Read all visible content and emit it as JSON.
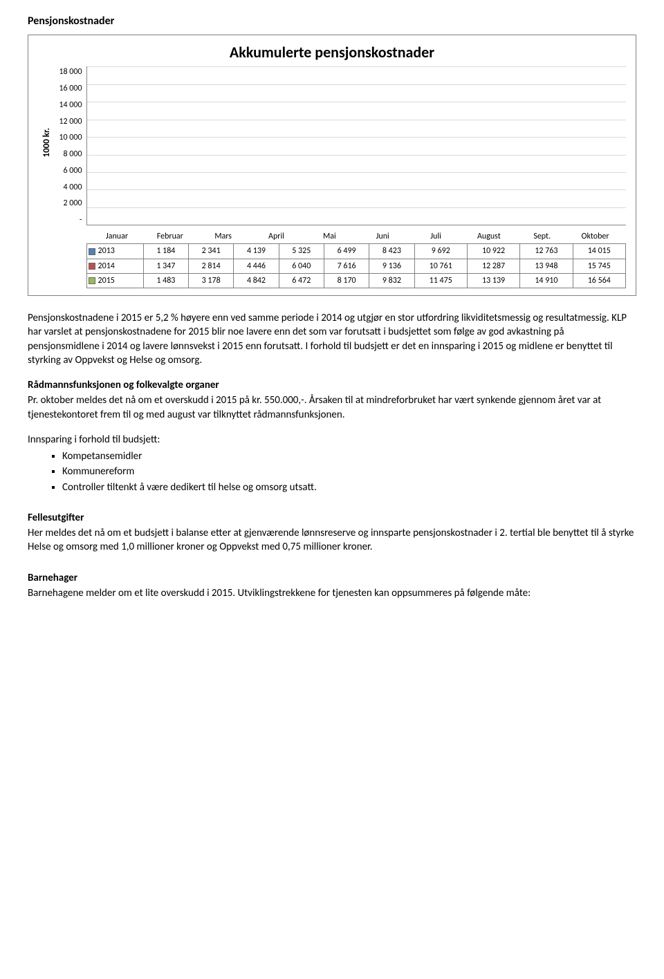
{
  "heading": "Pensjonskostnader",
  "chart": {
    "type": "bar",
    "title": "Akkumulerte pensjonskostnader",
    "y_axis_label": "1000 kr.",
    "ymax": 18000,
    "yticks": [
      "18 000",
      "16 000",
      "14 000",
      "12 000",
      "10 000",
      "8 000",
      "6 000",
      "4 000",
      "2 000",
      "-"
    ],
    "grid_color": "#d9d9d9",
    "categories": [
      "Januar",
      "Februar",
      "Mars",
      "April",
      "Mai",
      "Juni",
      "Juli",
      "August",
      "Sept.",
      "Oktober"
    ],
    "series": [
      {
        "name": "2013",
        "color": "#4f81bd",
        "values": [
          1184,
          2341,
          4139,
          5325,
          6499,
          8423,
          9692,
          10922,
          12763,
          14015
        ],
        "display": [
          "1 184",
          "2 341",
          "4 139",
          "5 325",
          "6 499",
          "8 423",
          "9 692",
          "10 922",
          "12 763",
          "14 015"
        ]
      },
      {
        "name": "2014",
        "color": "#c0504d",
        "values": [
          1347,
          2814,
          4446,
          6040,
          7616,
          9136,
          10761,
          12287,
          13948,
          15745
        ],
        "display": [
          "1 347",
          "2 814",
          "4 446",
          "6 040",
          "7 616",
          "9 136",
          "10 761",
          "12 287",
          "13 948",
          "15 745"
        ]
      },
      {
        "name": "2015",
        "color": "#9bbb59",
        "values": [
          1483,
          3178,
          4842,
          6472,
          8170,
          9832,
          11475,
          13139,
          14910,
          16564
        ],
        "display": [
          "1 483",
          "3 178",
          "4 842",
          "6 472",
          "8 170",
          "9 832",
          "11 475",
          "13 139",
          "14 910",
          "16 564"
        ]
      }
    ]
  },
  "paragraphs": {
    "p1": "Pensjonskostnadene i 2015 er 5,2 % høyere enn ved samme periode i 2014 og utgjør en stor utfordring likviditetsmessig og resultatmessig. KLP har varslet at pensjonskostnadene for 2015 blir noe lavere enn det som var forutsatt i budsjettet som følge av god avkastning på pensjonsmidlene i 2014 og lavere lønnsvekst i 2015 enn forutsatt. I forhold til budsjett er det en innsparing i 2015 og midlene er benyttet til styrking av Oppvekst og Helse og omsorg.",
    "radmann_head": "Rådmannsfunksjonen og folkevalgte organer",
    "radmann_body": "Pr. oktober meldes det nå om et overskudd i 2015 på kr. 550.000,-. Årsaken til at mindreforbruket har vært synkende gjennom året var at tjenestekontoret frem til og med august var tilknyttet rådmannsfunksjonen.",
    "innsparing_head": "Innsparing i forhold til budsjett:",
    "bullets": [
      "Kompetansemidler",
      "Kommunereform",
      "Controller tiltenkt å være dedikert til helse og omsorg utsatt."
    ],
    "felles_head": "Fellesutgifter",
    "felles_body": "Her meldes det nå om et budsjett i balanse etter at gjenværende lønnsreserve og innsparte pensjonskostnader i 2. tertial ble benyttet til å styrke Helse og omsorg med 1,0 millioner kroner og Oppvekst med 0,75 millioner kroner.",
    "barnehager_head": "Barnehager",
    "barnehager_body": "Barnehagene melder om et lite overskudd i 2015. Utviklingstrekkene for tjenesten kan oppsummeres på følgende måte:"
  }
}
